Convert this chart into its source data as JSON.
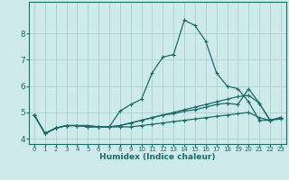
{
  "xlabel": "Humidex (Indice chaleur)",
  "bg_color": "#ceeaea",
  "grid_color": "#aacece",
  "line_color": "#1a6b6b",
  "xlim": [
    -0.5,
    23.5
  ],
  "ylim": [
    3.8,
    9.2
  ],
  "xticks": [
    0,
    1,
    2,
    3,
    4,
    5,
    6,
    7,
    8,
    9,
    10,
    11,
    12,
    13,
    14,
    15,
    16,
    17,
    18,
    19,
    20,
    21,
    22,
    23
  ],
  "yticks": [
    4,
    5,
    6,
    7,
    8
  ],
  "lines": [
    [
      4.9,
      4.2,
      4.4,
      4.5,
      4.5,
      4.45,
      4.45,
      4.45,
      4.45,
      4.45,
      4.5,
      4.55,
      4.6,
      4.65,
      4.7,
      4.75,
      4.8,
      4.85,
      4.9,
      4.95,
      5.0,
      4.8,
      4.7,
      4.75
    ],
    [
      4.9,
      4.2,
      4.4,
      4.5,
      4.5,
      4.45,
      4.45,
      4.45,
      5.05,
      5.3,
      5.5,
      6.5,
      7.1,
      7.2,
      8.5,
      8.3,
      7.7,
      6.5,
      6.0,
      5.9,
      5.4,
      4.7,
      4.7,
      4.8
    ],
    [
      4.9,
      4.2,
      4.4,
      4.5,
      4.5,
      4.5,
      4.45,
      4.45,
      4.5,
      4.6,
      4.7,
      4.8,
      4.9,
      4.95,
      5.05,
      5.1,
      5.2,
      5.3,
      5.35,
      5.3,
      5.9,
      5.35,
      4.7,
      4.8
    ],
    [
      4.9,
      4.2,
      4.4,
      4.5,
      4.5,
      4.5,
      4.45,
      4.45,
      4.5,
      4.6,
      4.7,
      4.8,
      4.9,
      5.0,
      5.1,
      5.2,
      5.3,
      5.4,
      5.5,
      5.6,
      5.65,
      5.35,
      4.7,
      4.8
    ]
  ]
}
